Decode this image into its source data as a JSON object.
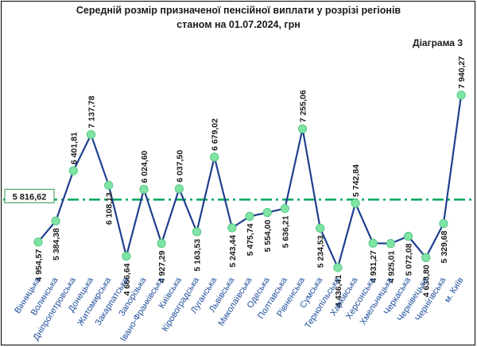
{
  "chart_data": {
    "type": "line",
    "title_line1": "Середній розмір призначеної пенсійної виплати у розрізі регіонів",
    "title_line2": "станом на 01.07.2024, грн",
    "subtitle": "Діаграма 3",
    "categories": [
      "Вінницька",
      "Волинська",
      "Дніпропетровська",
      "Донецька",
      "Житомирська",
      "Закарпатська",
      "Запорізька",
      "Івано-Франківська",
      "Київська",
      "Кіровоградська",
      "Луганська",
      "Львівська",
      "Миколаївська",
      "Одеська",
      "Полтавська",
      "Рівненська",
      "Сумська",
      "Тернопільська",
      "Харківська",
      "Херсонська",
      "Хмельницька",
      "Черкаська",
      "Чернівецька",
      "Чернігівська",
      "м. Київ"
    ],
    "values": [
      4954.57,
      5384.38,
      6401.81,
      7137.78,
      6108.13,
      4666.64,
      6024.6,
      4927.29,
      6037.5,
      5163.53,
      6679.02,
      5243.44,
      5475.74,
      5554.0,
      5636.21,
      7255.06,
      5234.53,
      4436.41,
      5742.84,
      4931.27,
      4925.01,
      5072.08,
      4638.8,
      5329.68,
      7940.27
    ],
    "value_labels": [
      "4 954,57",
      "5 384,38",
      "6 401,81",
      "7 137,78",
      "6 108,13",
      "4 666,64",
      "6 024,60",
      "4 927,29",
      "6 037,50",
      "5 163,53",
      "6 679,02",
      "5 243,44",
      "5 475,74",
      "5 554,00",
      "5 636,21",
      "7 255,06",
      "5 234,53",
      "4 436,41",
      "5 742,84",
      "4 931,27",
      "4 925,01",
      "5 072,08",
      "4 638,80",
      "5 329,68",
      "7 940,27"
    ],
    "average": 5816.62,
    "average_label": "5 816,62",
    "ylim": [
      4000,
      8500
    ],
    "grid": false,
    "colors": {
      "line": "#1f3f8f",
      "marker": "#7fe3a3",
      "average_line": "#00a65a",
      "category_text": "#1f4e9b"
    }
  }
}
